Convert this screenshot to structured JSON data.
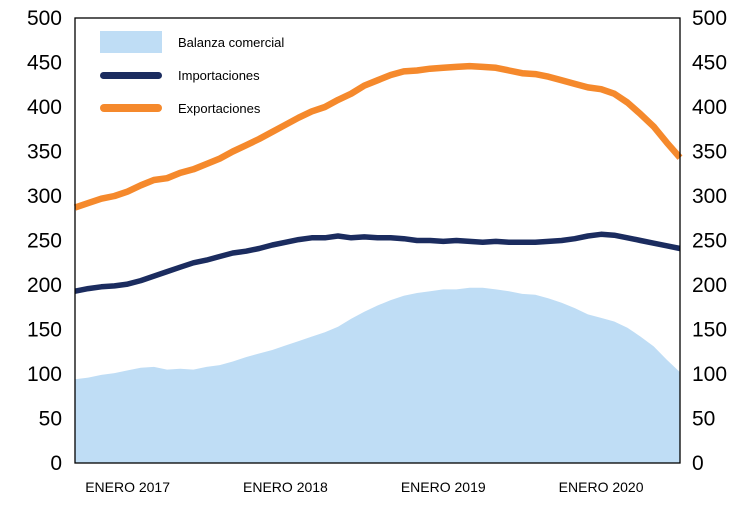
{
  "chart_data": {
    "type": "area",
    "title": "",
    "xlabel": "",
    "ylabel": "",
    "ylim": [
      0,
      500
    ],
    "yticks": [
      0,
      50,
      100,
      150,
      200,
      250,
      300,
      350,
      400,
      450,
      500
    ],
    "y_axis_sides": [
      "left",
      "right"
    ],
    "grid": false,
    "legend_position": "top-left-inside",
    "x_tick_labels": [
      "ENERO 2017",
      "ENERO 2018",
      "ENERO 2019",
      "ENERO 2020"
    ],
    "x_tick_indices": [
      4,
      16,
      28,
      40
    ],
    "x_range_note": "monthly points from Sep 2016 to Jul 2020",
    "n_points": 47,
    "series": [
      {
        "name": "Balanza comercial",
        "type": "area",
        "color": "#BFDDF5",
        "values": [
          94,
          96,
          99,
          101,
          104,
          107,
          108,
          105,
          106,
          105,
          108,
          110,
          114,
          119,
          123,
          127,
          132,
          137,
          142,
          147,
          153,
          162,
          170,
          177,
          183,
          188,
          191,
          193,
          195,
          195,
          197,
          197,
          195,
          193,
          190,
          189,
          185,
          180,
          174,
          167,
          163,
          159,
          152,
          142,
          131,
          116,
          102
        ]
      },
      {
        "name": "Importaciones",
        "type": "line",
        "color": "#1B2C5F",
        "stroke_width": 5.5,
        "values": [
          193,
          196,
          198,
          199,
          201,
          205,
          210,
          215,
          220,
          225,
          228,
          232,
          236,
          238,
          241,
          245,
          248,
          251,
          253,
          253,
          255,
          253,
          254,
          253,
          253,
          252,
          250,
          250,
          249,
          250,
          249,
          248,
          249,
          248,
          248,
          248,
          249,
          250,
          252,
          255,
          257,
          256,
          253,
          250,
          247,
          244,
          241
        ]
      },
      {
        "name": "Exportaciones",
        "type": "line",
        "color": "#F5892C",
        "stroke_width": 6.5,
        "values": [
          287,
          292,
          297,
          300,
          305,
          312,
          318,
          320,
          326,
          330,
          336,
          342,
          350,
          357,
          364,
          372,
          380,
          388,
          395,
          400,
          408,
          415,
          424,
          430,
          436,
          440,
          441,
          443,
          444,
          445,
          446,
          445,
          444,
          441,
          438,
          437,
          434,
          430,
          426,
          422,
          420,
          415,
          405,
          392,
          378,
          360,
          343
        ]
      }
    ],
    "colors": {
      "area_fill": "#BFDDF5",
      "imports_line": "#1B2C5F",
      "exports_line": "#F5892C",
      "axis": "#000000",
      "background": "#FFFFFF"
    }
  },
  "legend": {
    "items": [
      {
        "label": "Balanza comercial"
      },
      {
        "label": "Importaciones"
      },
      {
        "label": "Exportaciones"
      }
    ]
  }
}
